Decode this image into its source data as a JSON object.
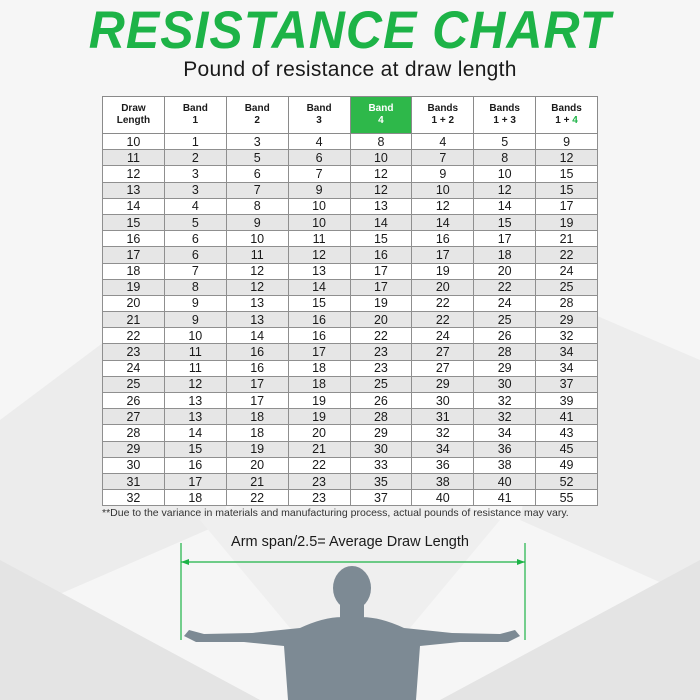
{
  "title": "RESISTANCE CHART",
  "subtitle": "Pound of resistance at draw length",
  "table": {
    "headers": [
      {
        "line1": "Draw",
        "line2": "Length",
        "highlight": false
      },
      {
        "line1": "Band",
        "line2": "1",
        "highlight": false
      },
      {
        "line1": "Band",
        "line2": "2",
        "highlight": false
      },
      {
        "line1": "Band",
        "line2": "3",
        "highlight": false
      },
      {
        "line1": "Band",
        "line2": "4",
        "highlight": true
      },
      {
        "line1": "Bands",
        "line2": "1 + 2",
        "highlight": false
      },
      {
        "line1": "Bands",
        "line2": "1 + 3",
        "highlight": false
      },
      {
        "line1": "Bands",
        "line2": "1 + ",
        "line2_accent": "4",
        "highlight": false
      }
    ],
    "rows": [
      [
        10,
        1,
        3,
        4,
        8,
        4,
        5,
        9
      ],
      [
        11,
        2,
        5,
        6,
        10,
        7,
        8,
        12
      ],
      [
        12,
        3,
        6,
        7,
        12,
        9,
        10,
        15
      ],
      [
        13,
        3,
        7,
        9,
        12,
        10,
        12,
        15
      ],
      [
        14,
        4,
        8,
        10,
        13,
        12,
        14,
        17
      ],
      [
        15,
        5,
        9,
        10,
        14,
        14,
        15,
        19
      ],
      [
        16,
        6,
        10,
        11,
        15,
        16,
        17,
        21
      ],
      [
        17,
        6,
        11,
        12,
        16,
        17,
        18,
        22
      ],
      [
        18,
        7,
        12,
        13,
        17,
        19,
        20,
        24
      ],
      [
        19,
        8,
        12,
        14,
        17,
        20,
        22,
        25
      ],
      [
        20,
        9,
        13,
        15,
        19,
        22,
        24,
        28
      ],
      [
        21,
        9,
        13,
        16,
        20,
        22,
        25,
        29
      ],
      [
        22,
        10,
        14,
        16,
        22,
        24,
        26,
        32
      ],
      [
        23,
        11,
        16,
        17,
        23,
        27,
        28,
        34
      ],
      [
        24,
        11,
        16,
        18,
        23,
        27,
        29,
        34
      ],
      [
        25,
        12,
        17,
        18,
        25,
        29,
        30,
        37
      ],
      [
        26,
        13,
        17,
        19,
        26,
        30,
        32,
        39
      ],
      [
        27,
        13,
        18,
        19,
        28,
        31,
        32,
        41
      ],
      [
        28,
        14,
        18,
        20,
        29,
        32,
        34,
        43
      ],
      [
        29,
        15,
        19,
        21,
        30,
        34,
        36,
        45
      ],
      [
        30,
        16,
        20,
        22,
        33,
        36,
        38,
        49
      ],
      [
        31,
        17,
        21,
        23,
        35,
        38,
        40,
        52
      ],
      [
        32,
        18,
        22,
        23,
        37,
        40,
        41,
        55
      ]
    ]
  },
  "footnote": "**Due to the variance in materials and manufacturing process, actual pounds of resistance may vary.",
  "arm_span_label": "Arm span/2.5= Average Draw Length",
  "colors": {
    "accent": "#1db347",
    "header_highlight": "#2eb84a",
    "figure": "#7d8a94"
  },
  "icons": {
    "figure": "person-arms-outstretched-icon"
  }
}
